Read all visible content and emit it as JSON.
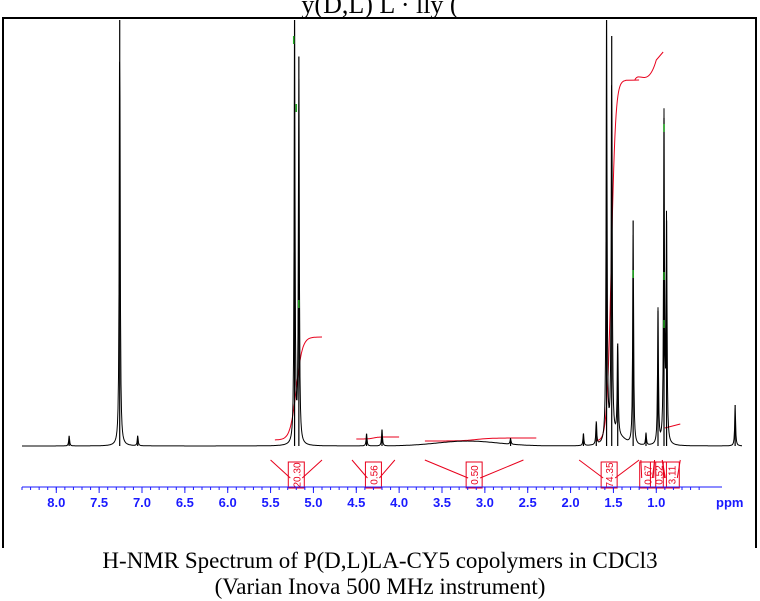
{
  "top_caption": "y(D,L) L   ·   lly  (",
  "caption": {
    "line1": "H-NMR Spectrum of P(D,L)LA-CY5 copolymers in CDCl3",
    "line2": "(Varian Inova 500 MHz instrument)"
  },
  "colors": {
    "spectrum": "#000000",
    "integral": "#e8001c",
    "peak_marker": "#22aa22",
    "axis": "#1a1aff",
    "frame": "#000000"
  },
  "chart_data": {
    "type": "line",
    "title": "",
    "xlabel": "ppm",
    "ylabel": "",
    "xlim": [
      8.4,
      0.0
    ],
    "x_reversed": true,
    "x_ticks": [
      "8.0",
      "7.5",
      "7.0",
      "6.5",
      "6.0",
      "5.5",
      "5.0",
      "4.5",
      "4.0",
      "3.5",
      "3.0",
      "2.5",
      "2.0",
      "1.5",
      "1.0"
    ],
    "minor_tick_step": 0.1,
    "grid": false,
    "legend": "none",
    "peaks": [
      {
        "ppm": 7.85,
        "height": 0.025
      },
      {
        "ppm": 7.26,
        "height": 1.1
      },
      {
        "ppm": 7.05,
        "height": 0.025
      },
      {
        "ppm": 5.22,
        "height": 1.05
      },
      {
        "ppm": 5.17,
        "height": 0.95
      },
      {
        "ppm": 4.38,
        "height": 0.03
      },
      {
        "ppm": 4.2,
        "height": 0.04
      },
      {
        "ppm": 2.7,
        "height": 0.015
      },
      {
        "ppm": 1.85,
        "height": 0.03
      },
      {
        "ppm": 1.7,
        "height": 0.06
      },
      {
        "ppm": 1.58,
        "height": 1.1
      },
      {
        "ppm": 1.52,
        "height": 1.0
      },
      {
        "ppm": 1.45,
        "height": 0.25
      },
      {
        "ppm": 1.27,
        "height": 0.55
      },
      {
        "ppm": 1.12,
        "height": 0.03
      },
      {
        "ppm": 0.98,
        "height": 0.33
      },
      {
        "ppm": 0.91,
        "height": 0.8
      },
      {
        "ppm": 0.88,
        "height": 0.55
      },
      {
        "ppm": 0.08,
        "height": 0.1
      }
    ],
    "integrals": [
      {
        "from": 5.5,
        "to": 4.9,
        "value": "20.30"
      },
      {
        "from": 4.55,
        "to": 4.05,
        "value": "0.56"
      },
      {
        "from": 3.7,
        "to": 2.55,
        "value": "0.50"
      },
      {
        "from": 1.9,
        "to": 1.2,
        "value": "74.35"
      },
      {
        "from": 1.18,
        "to": 1.02,
        "value": "0.67"
      },
      {
        "from": 1.02,
        "to": 0.93,
        "value": "0.52"
      },
      {
        "from": 0.93,
        "to": 0.72,
        "value": "3.11"
      }
    ]
  }
}
